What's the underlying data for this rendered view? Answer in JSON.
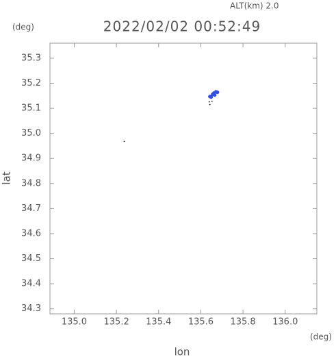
{
  "chart_data": {
    "type": "scatter",
    "title": "2022/02/02 00:52:49",
    "subtitle": "ALT(km) 2.0",
    "x_label": "lon",
    "y_label": "lat",
    "x_unit": "(deg)",
    "y_unit": "(deg)",
    "series": [
      {
        "color": "#3050e0",
        "x": [
          135.643,
          135.656,
          135.662,
          135.672,
          135.679,
          135.649,
          135.666
        ],
        "values": [
          35.147,
          35.156,
          35.161,
          35.166,
          35.164,
          35.145,
          35.153
        ]
      },
      {
        "color": "#111111",
        "x": [
          135.64,
          135.653,
          135.643,
          135.237
        ],
        "values": [
          35.126,
          35.128,
          35.115,
          34.968
        ]
      }
    ],
    "xlim": [
      134.885,
      136.15
    ],
    "ylim": [
      34.28,
      35.36
    ],
    "xticks": [
      {
        "value": 135.0,
        "label": "135.0"
      },
      135.2,
      135.4,
      135.6,
      135.8,
      {
        "value": 136.0,
        "label": "136.0"
      }
    ],
    "yticks": [
      35.3,
      35.2,
      35.1,
      {
        "value": 35.0,
        "label": "35.0"
      },
      34.9,
      34.8,
      34.7,
      34.6,
      34.5,
      34.4,
      34.3
    ]
  }
}
